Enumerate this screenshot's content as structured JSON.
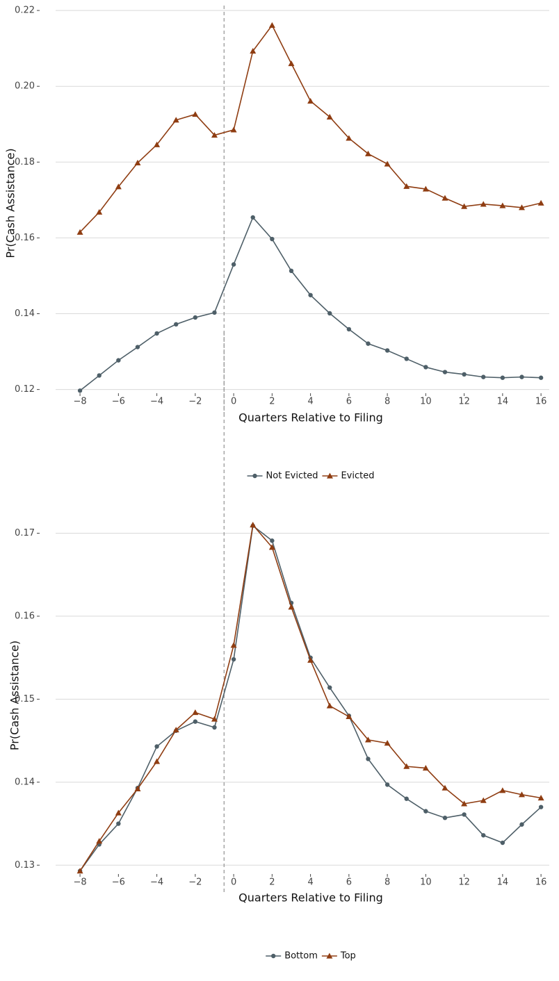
{
  "chart_data": [
    {
      "type": "line",
      "y_label": "Pr(Cash Assistance)",
      "x_label": "Quarters Relative to Filing",
      "x": [
        -8,
        -7,
        -6,
        -5,
        -4,
        -3,
        -2,
        -1,
        0,
        1,
        2,
        3,
        4,
        5,
        6,
        7,
        8,
        9,
        10,
        11,
        12,
        13,
        14,
        15,
        16
      ],
      "series": [
        {
          "name": "Not Evicted",
          "color": "#4e5f68",
          "marker": "circle",
          "values": [
            0.1197,
            0.1237,
            0.1277,
            0.1312,
            0.1348,
            0.1372,
            0.139,
            0.1403,
            0.153,
            0.1654,
            0.1597,
            0.1513,
            0.1449,
            0.1401,
            0.1359,
            0.1321,
            0.1303,
            0.1281,
            0.1259,
            0.1246,
            0.124,
            0.1233,
            0.1231,
            0.1233,
            0.1231
          ]
        },
        {
          "name": "Evicted",
          "color": "#8f3d12",
          "marker": "triangle",
          "values": [
            0.1615,
            0.1668,
            0.1735,
            0.1798,
            0.1846,
            0.1911,
            0.1926,
            0.1871,
            0.1885,
            0.2093,
            0.2161,
            0.206,
            0.1961,
            0.1919,
            0.1863,
            0.1822,
            0.1795,
            0.1736,
            0.1729,
            0.1705,
            0.1683,
            0.1689,
            0.1685,
            0.168,
            0.1692
          ]
        }
      ],
      "xlim": [
        -9.27,
        16.43
      ],
      "xticks": [
        {
          "value": -8,
          "label": "−8"
        },
        {
          "value": -6,
          "label": "−6"
        },
        {
          "value": -4,
          "label": "−4"
        },
        {
          "value": -2,
          "label": "−2"
        },
        0,
        2,
        4,
        6,
        8,
        10,
        12,
        14,
        16
      ],
      "ylim": [
        0.117,
        0.2213
      ],
      "yticks": [
        0.12,
        0.14,
        0.16,
        0.18,
        0.2,
        0.22
      ],
      "ytick_labels": [
        "0.12",
        "0.14",
        "0.16",
        "0.18",
        "0.20",
        "0.22"
      ],
      "vline": -0.5,
      "grid": true,
      "legend": "bottom"
    },
    {
      "type": "line",
      "y_label": "Pr(Cash Assistance)",
      "x_label": "Quarters Relative to Filing",
      "x": [
        -8,
        -7,
        -6,
        -5,
        -4,
        -3,
        -2,
        -1,
        0,
        1,
        2,
        3,
        4,
        5,
        6,
        7,
        8,
        9,
        10,
        11,
        12,
        13,
        14,
        15,
        16
      ],
      "series": [
        {
          "name": "Bottom",
          "color": "#4e5f68",
          "marker": "circle",
          "values": [
            0.1293,
            0.1325,
            0.135,
            0.1393,
            0.1443,
            0.1462,
            0.1473,
            0.1466,
            0.1548,
            0.1709,
            0.1691,
            0.1616,
            0.155,
            0.1514,
            0.148,
            0.1428,
            0.1397,
            0.138,
            0.1365,
            0.1357,
            0.1361,
            0.1336,
            0.1327,
            0.1349,
            0.137
          ]
        },
        {
          "name": "Top",
          "color": "#8f3d12",
          "marker": "triangle",
          "values": [
            0.1293,
            0.1329,
            0.1363,
            0.1392,
            0.1425,
            0.1463,
            0.1484,
            0.1476,
            0.1565,
            0.171,
            0.1683,
            0.1611,
            0.1547,
            0.1492,
            0.1479,
            0.1451,
            0.1447,
            0.1419,
            0.1417,
            0.1393,
            0.1374,
            0.1378,
            0.139,
            0.1385,
            0.1381
          ]
        }
      ],
      "xlim": [
        -9.27,
        16.43
      ],
      "xticks": [
        {
          "value": -8,
          "label": "−8"
        },
        {
          "value": -6,
          "label": "−6"
        },
        {
          "value": -4,
          "label": "−4"
        },
        {
          "value": -2,
          "label": "−2"
        },
        0,
        2,
        4,
        6,
        8,
        10,
        12,
        14,
        16
      ],
      "ylim": [
        0.1286,
        0.1723
      ],
      "yticks": [
        0.13,
        0.14,
        0.15,
        0.16,
        0.17
      ],
      "ytick_labels": [
        "0.13",
        "0.14",
        "0.15",
        "0.16",
        "0.17"
      ],
      "vline": -0.5,
      "grid": true,
      "legend": "bottom"
    }
  ]
}
